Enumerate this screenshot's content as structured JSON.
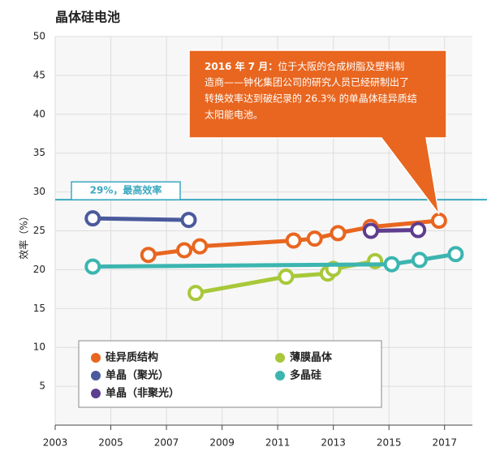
{
  "chart_data": {
    "type": "line",
    "title": "晶体硅电池",
    "y_label": "效率（%）",
    "xlim": [
      2003,
      2018
    ],
    "xticks": [
      2003,
      2005,
      2007,
      2009,
      2011,
      2013,
      2015,
      2017
    ],
    "ylim": [
      0,
      50
    ],
    "yticks": [
      5,
      10,
      15,
      20,
      25,
      30,
      35,
      40,
      45,
      50
    ],
    "grid": true,
    "reference_line": {
      "value": 29,
      "label": "29%，最高效率",
      "color": "#3aa9c0"
    },
    "annotation": {
      "heading": "2016 年 7 月：",
      "lines": [
        "位于大阪的合成树脂及塑料制",
        "造商——钟化集团公司的研究人员已经研制出了",
        "转换效率达到破纪录的 26.3% 的单晶体硅异质结",
        "太阳能电池。"
      ],
      "color": "#e8661f"
    },
    "series": [
      {
        "name": "硅异质结构",
        "color": "#e8661f",
        "x": [
          2006.35,
          2007.64,
          2008.2,
          2011.57,
          2012.33,
          2013.17,
          2014.34,
          2016.8
        ],
        "values": [
          21.9,
          22.5,
          23.0,
          23.75,
          24.0,
          24.7,
          25.5,
          26.3
        ]
      },
      {
        "name": "单晶（聚光）",
        "color": "#4a5a9c",
        "x": [
          2004.35,
          2007.8
        ],
        "values": [
          26.6,
          26.4
        ]
      },
      {
        "name": "单晶（非聚光）",
        "color": "#5e3d8f",
        "x": [
          2014.35,
          2016.05
        ],
        "values": [
          25.0,
          25.1
        ]
      },
      {
        "name": "薄膜晶体",
        "color": "#a8c83a",
        "x": [
          2008.05,
          2011.3,
          2012.8,
          2013.0,
          2014.5
        ],
        "values": [
          17.0,
          19.1,
          19.5,
          20.1,
          21.1
        ]
      },
      {
        "name": "多晶硅",
        "color": "#3cb5b0",
        "x": [
          2004.35,
          2015.1,
          2016.1,
          2017.4
        ],
        "values": [
          20.4,
          20.7,
          21.25,
          22.0
        ]
      }
    ]
  }
}
